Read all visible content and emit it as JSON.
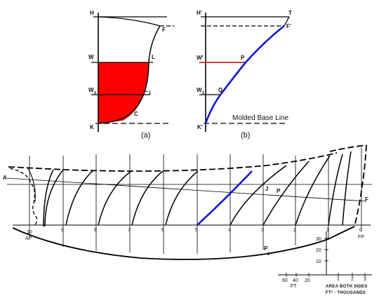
{
  "panel_a": {
    "labels": {
      "H": "H",
      "F": "F",
      "W": "W",
      "L": "L",
      "W1": "W",
      "W1_sub": "1",
      "L1": "L",
      "L1_sub": "1",
      "C": "C",
      "K": "K"
    },
    "caption": "(a)",
    "colors": {
      "fill": "#ff0000",
      "stroke": "#000000"
    }
  },
  "panel_b": {
    "labels": {
      "H": "H'",
      "T": "T",
      "F": "F'",
      "W": "W'",
      "P": "P",
      "W1": "W",
      "W1_sub": "1",
      "Q": "Q",
      "K": "K'"
    },
    "caption": "(b)",
    "baseline_label": "Molded Base Line",
    "colors": {
      "curve": "#1515d0",
      "waterline": "#c00000"
    }
  },
  "hull_plan": {
    "labels": {
      "A": "A",
      "J": "J",
      "P": "P",
      "F": "F",
      "P1": "P",
      "P1_sub": "1"
    },
    "stations": [
      "10",
      "9",
      "8",
      "7",
      "6",
      "5",
      "4",
      "3",
      "2",
      "1",
      "0"
    ],
    "end_labels": {
      "aft": "AP",
      "fwd": "FP"
    },
    "highlight_station": "5",
    "colors": {
      "highlight": "#1515d0",
      "stroke": "#000000"
    },
    "vertical_scale": {
      "ticks": [
        "30",
        "20",
        "10"
      ]
    },
    "horizontal_scale": {
      "left_ticks": [
        "60",
        "40",
        "20"
      ],
      "ft_label": "FT",
      "right_ticks": [
        "1",
        "2",
        "3"
      ],
      "caption_line1": "AREA BOTH SIDES",
      "caption_line2": "FT² - THOUSANDS"
    }
  }
}
